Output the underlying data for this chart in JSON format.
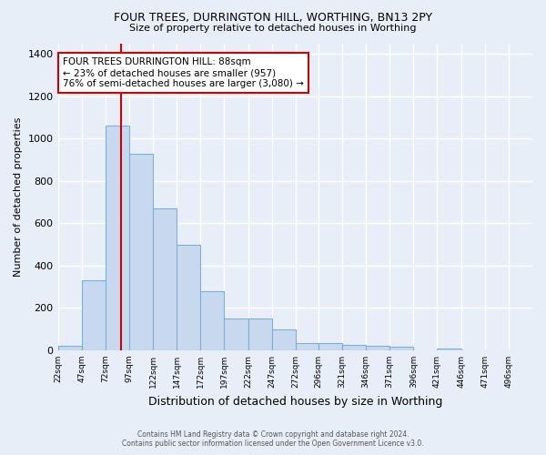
{
  "title1": "FOUR TREES, DURRINGTON HILL, WORTHING, BN13 2PY",
  "title2": "Size of property relative to detached houses in Worthing",
  "xlabel": "Distribution of detached houses by size in Worthing",
  "ylabel": "Number of detached properties",
  "bin_edges": [
    22,
    47,
    72,
    97,
    122,
    147,
    172,
    197,
    222,
    247,
    272,
    296,
    321,
    346,
    371,
    396,
    421,
    446,
    471,
    496,
    521
  ],
  "bar_heights": [
    20,
    330,
    1060,
    930,
    670,
    500,
    280,
    150,
    150,
    100,
    35,
    35,
    25,
    20,
    15,
    0,
    10,
    0,
    0,
    0
  ],
  "bar_color": "#c8d9ef",
  "bar_edge_color": "#7bafd4",
  "background_color": "#e8eef8",
  "plot_bg_color": "#e8eef8",
  "grid_color": "#ffffff",
  "red_line_x": 88,
  "red_line_color": "#cc0000",
  "annotation_line1": "FOUR TREES DURRINGTON HILL: 88sqm",
  "annotation_line2": "← 23% of detached houses are smaller (957)",
  "annotation_line3": "76% of semi-detached houses are larger (3,080) →",
  "annotation_box_color": "#ffffff",
  "annotation_box_edge_color": "#cc0000",
  "footer1": "Contains HM Land Registry data © Crown copyright and database right 2024.",
  "footer2": "Contains public sector information licensed under the Open Government Licence v3.0.",
  "ylim": [
    0,
    1450
  ],
  "yticks": [
    0,
    200,
    400,
    600,
    800,
    1000,
    1200,
    1400
  ]
}
